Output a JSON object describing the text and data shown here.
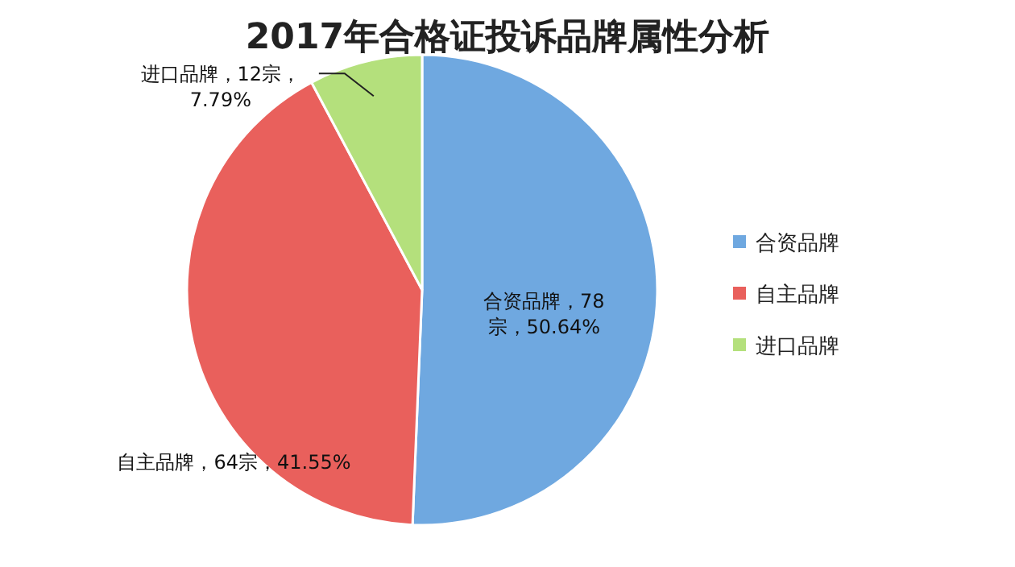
{
  "chart_data": {
    "type": "pie",
    "title": "2017年合格证投诉品牌属性分析",
    "categories": [
      "合资品牌",
      "自主品牌",
      "进口品牌"
    ],
    "values": [
      78,
      64,
      12
    ],
    "colors": [
      "#6fa8e0",
      "#e9605c",
      "#b4e07c"
    ],
    "value_labels": [
      "合资品牌，78宗，50.64%",
      "自主品牌，64宗，41.55%",
      "进口品牌，12宗，7.79%"
    ],
    "legend": "right"
  }
}
